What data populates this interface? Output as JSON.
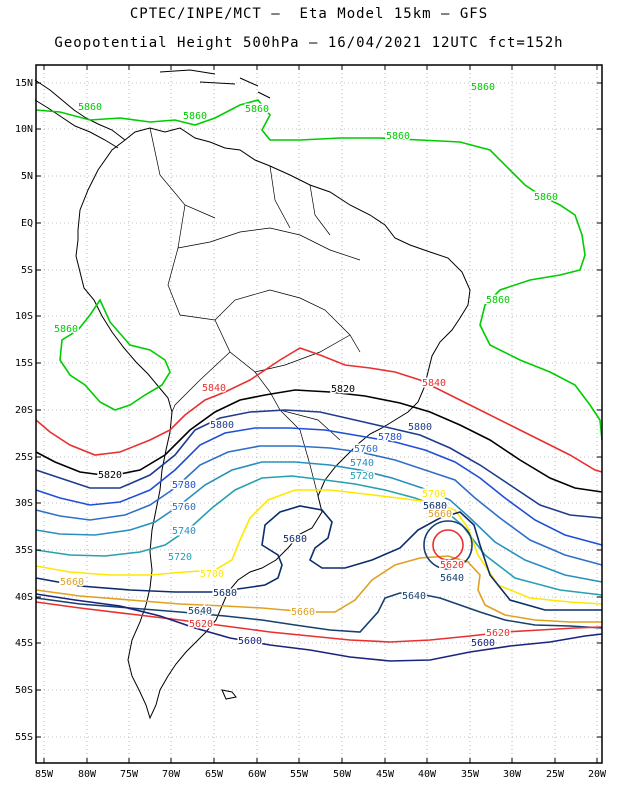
{
  "title_line1": "CPTEC/INPE/MCT –  Eta Model 15km – GFS",
  "title_line2": "Geopotential Height 500hPa – 16/04/2021 12UTC fct=152h",
  "y_ticks": [
    "15N",
    "10N",
    "5N",
    "EQ",
    "5S",
    "10S",
    "15S",
    "20S",
    "25S",
    "30S",
    "35S",
    "40S",
    "45S",
    "50S",
    "55S"
  ],
  "x_ticks": [
    "85W",
    "80W",
    "75W",
    "70W",
    "65W",
    "60W",
    "55W",
    "50W",
    "45W",
    "40W",
    "35W",
    "30W",
    "25W",
    "20W"
  ],
  "colors": {
    "5860": "#00cc00",
    "5840": "#e83030",
    "5820": "#000000",
    "5800": "#1f3c8c",
    "5780": "#1f4ed8",
    "5760": "#2f6fc8",
    "5740": "#2a8fc0",
    "5720": "#27a0b0",
    "5700": "#ffe800",
    "5680": "#0c2d6b",
    "5660": "#e0a020",
    "5640": "#16406e",
    "5620": "#e83030",
    "5600": "#1a237e",
    "coast": "#000000",
    "grid": "#888888"
  },
  "contour_labels": [
    {
      "text": "5860",
      "color_key": "5860"
    },
    {
      "text": "5860",
      "color_key": "5860"
    },
    {
      "text": "5860",
      "color_key": "5860"
    },
    {
      "text": "5860",
      "color_key": "5860"
    },
    {
      "text": "5860",
      "color_key": "5860"
    },
    {
      "text": "5860",
      "color_key": "5860"
    },
    {
      "text": "5860",
      "color_key": "5860"
    },
    {
      "text": "5860",
      "color_key": "5860"
    },
    {
      "text": "5840",
      "color_key": "5840"
    },
    {
      "text": "5840",
      "color_key": "5840"
    },
    {
      "text": "5820",
      "color_key": "5820"
    },
    {
      "text": "5820",
      "color_key": "5820"
    },
    {
      "text": "5800",
      "color_key": "5800"
    },
    {
      "text": "5800",
      "color_key": "5800"
    },
    {
      "text": "5780",
      "color_key": "5780"
    },
    {
      "text": "5780",
      "color_key": "5780"
    },
    {
      "text": "5760",
      "color_key": "5760"
    },
    {
      "text": "5760",
      "color_key": "5760"
    },
    {
      "text": "5740",
      "color_key": "5740"
    },
    {
      "text": "5740",
      "color_key": "5740"
    },
    {
      "text": "5720",
      "color_key": "5720"
    },
    {
      "text": "5720",
      "color_key": "5720"
    },
    {
      "text": "5700",
      "color_key": "5700"
    },
    {
      "text": "5700",
      "color_key": "5700"
    },
    {
      "text": "5680",
      "color_key": "5680"
    },
    {
      "text": "5680",
      "color_key": "5680"
    },
    {
      "text": "5680",
      "color_key": "5680"
    },
    {
      "text": "5660",
      "color_key": "5660"
    },
    {
      "text": "5660",
      "color_key": "5660"
    },
    {
      "text": "5660",
      "color_key": "5660"
    },
    {
      "text": "5640",
      "color_key": "5640"
    },
    {
      "text": "5640",
      "color_key": "5640"
    },
    {
      "text": "5640",
      "color_key": "5640"
    },
    {
      "text": "5620",
      "color_key": "5620"
    },
    {
      "text": "5620",
      "color_key": "5620"
    },
    {
      "text": "5620",
      "color_key": "5620"
    },
    {
      "text": "5600",
      "color_key": "5600"
    },
    {
      "text": "5600",
      "color_key": "5600"
    }
  ]
}
